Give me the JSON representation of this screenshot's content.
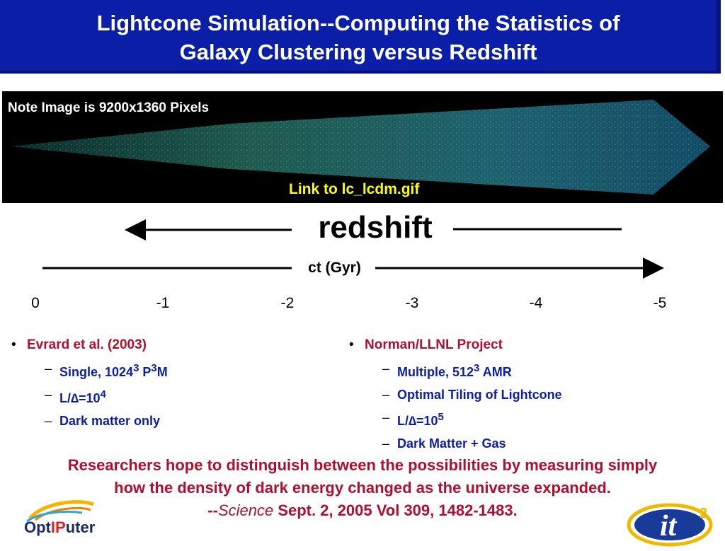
{
  "title": {
    "line1": "Lightcone Simulation--Computing the Statistics of",
    "line2": "Galaxy Clustering versus Redshift"
  },
  "image_panel": {
    "note": "Note Image is 9200x1360 Pixels",
    "link_text": "Link to lc_lcdm.gif"
  },
  "axis": {
    "redshift_label": "redshift",
    "ct_label": "ct (Gyr)",
    "ticks": [
      "0",
      "-1",
      "-2",
      "-3",
      "-4",
      "-5"
    ]
  },
  "left_column": {
    "heading": "Evrard et al. (2003)",
    "items": [
      {
        "pre": "Single, 1024",
        "sup1": "3",
        "mid": " P",
        "sup2": "3",
        "post": "M"
      },
      {
        "pre": "L/∆=10",
        "sup1": "4"
      },
      {
        "pre": "Dark matter only"
      }
    ]
  },
  "right_column": {
    "heading": "Norman/LLNL Project",
    "items": [
      {
        "pre": "Multiple, 512",
        "sup1": "3",
        "post": " AMR"
      },
      {
        "pre": "Optimal Tiling of Lightcone"
      },
      {
        "pre": "L/∆=10",
        "sup1": "5"
      },
      {
        "pre": "Dark Matter + Gas"
      }
    ]
  },
  "quote": {
    "line1": "Researchers hope to distinguish between the possibilities by measuring simply",
    "line2": "how the density of dark energy changed as the universe expanded.",
    "dashes": "--",
    "source_italic": "Science",
    "citation": " Sept. 2, 2005 Vol 309, 1482-1483."
  },
  "logos": {
    "left": {
      "pre": "Opt",
      "highlight": "IP",
      "post": "uter"
    },
    "right": {
      "text": "it",
      "sup": "2"
    }
  },
  "colors": {
    "title_bg": "#0a1ea8",
    "heading_red": "#b0102e",
    "item_blue": "#0a1ea8",
    "link_yellow": "#ffff00"
  }
}
